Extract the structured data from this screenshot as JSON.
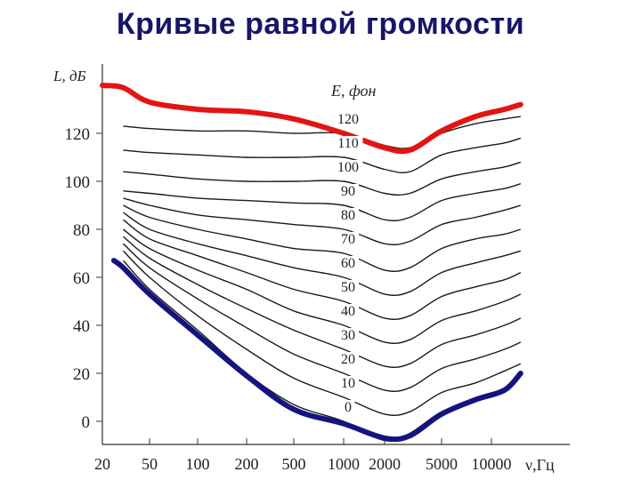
{
  "slide": {
    "title": "Кривые равной громкости"
  },
  "chart_data": {
    "type": "line",
    "ylabel": "L, дБ",
    "xlabel": "ν,Гц",
    "legend_label": "E, фон",
    "x_ticks": [
      "20",
      "50",
      "100",
      "200",
      "500",
      "1000",
      "2000",
      "5000",
      "10000"
    ],
    "y_ticks": [
      0,
      20,
      40,
      60,
      80,
      100,
      120
    ],
    "ylim": [
      -8,
      148
    ],
    "curve_x": [
      20,
      30,
      50,
      100,
      200,
      500,
      1000,
      2000,
      3000,
      5000,
      8000,
      12000,
      15000
    ],
    "series": [
      {
        "name": "0",
        "values": [
          null,
          67,
          55,
          38,
          20,
          7,
          0,
          -8,
          -5,
          4,
          9,
          14,
          20
        ]
      },
      {
        "name": "10",
        "values": [
          null,
          71,
          60,
          44,
          30,
          18,
          10,
          3,
          4,
          12,
          16,
          21,
          24
        ]
      },
      {
        "name": "20",
        "values": [
          null,
          74,
          64,
          51,
          39,
          28,
          20,
          13,
          14,
          22,
          26,
          30,
          33
        ]
      },
      {
        "name": "30",
        "values": [
          null,
          77,
          68,
          57,
          47,
          38,
          30,
          23,
          24,
          32,
          36,
          40,
          43
        ]
      },
      {
        "name": "40",
        "values": [
          null,
          80,
          72,
          63,
          55,
          46,
          40,
          33,
          34,
          42,
          46,
          50,
          53
        ]
      },
      {
        "name": "50",
        "values": [
          null,
          84,
          76,
          69,
          62,
          55,
          50,
          43,
          44,
          52,
          56,
          59,
          62
        ]
      },
      {
        "name": "60",
        "values": [
          null,
          87,
          80,
          74,
          69,
          64,
          60,
          53,
          54,
          62,
          66,
          69,
          71
        ]
      },
      {
        "name": "70",
        "values": [
          null,
          90,
          85,
          80,
          76,
          72,
          70,
          63,
          64,
          72,
          76,
          78,
          80
        ]
      },
      {
        "name": "80",
        "values": [
          null,
          93,
          90,
          86,
          84,
          82,
          80,
          74,
          75,
          82,
          85,
          88,
          90
        ]
      },
      {
        "name": "90",
        "values": [
          null,
          96,
          95,
          93,
          92,
          91,
          90,
          84,
          85,
          92,
          95,
          97,
          99
        ]
      },
      {
        "name": "100",
        "values": [
          null,
          104,
          103,
          101,
          100,
          100,
          100,
          95,
          95,
          101,
          104,
          106,
          108
        ]
      },
      {
        "name": "110",
        "values": [
          null,
          113,
          112,
          111,
          110,
          110,
          110,
          105,
          104,
          111,
          114,
          116,
          118
        ]
      },
      {
        "name": "120",
        "values": [
          null,
          123,
          122,
          121,
          121,
          120,
          120,
          115,
          114,
          120,
          124,
          126,
          127
        ]
      }
    ],
    "bounds": [
      {
        "color": "#e41414",
        "x": [
          20,
          30,
          50,
          100,
          200,
          500,
          1000,
          2000,
          3000,
          5000,
          8000,
          12000,
          15000
        ],
        "values": [
          140,
          139,
          133,
          130,
          129,
          126,
          120,
          114,
          113,
          121,
          127,
          130,
          132
        ]
      },
      {
        "color": "#141480",
        "x": [
          25,
          30,
          50,
          100,
          200,
          500,
          1000,
          2000,
          3000,
          5000,
          8000,
          12000,
          15000
        ],
        "values": [
          67,
          64,
          53,
          36,
          19,
          5,
          -1,
          -7,
          -6,
          3,
          9,
          13,
          20
        ]
      }
    ]
  }
}
